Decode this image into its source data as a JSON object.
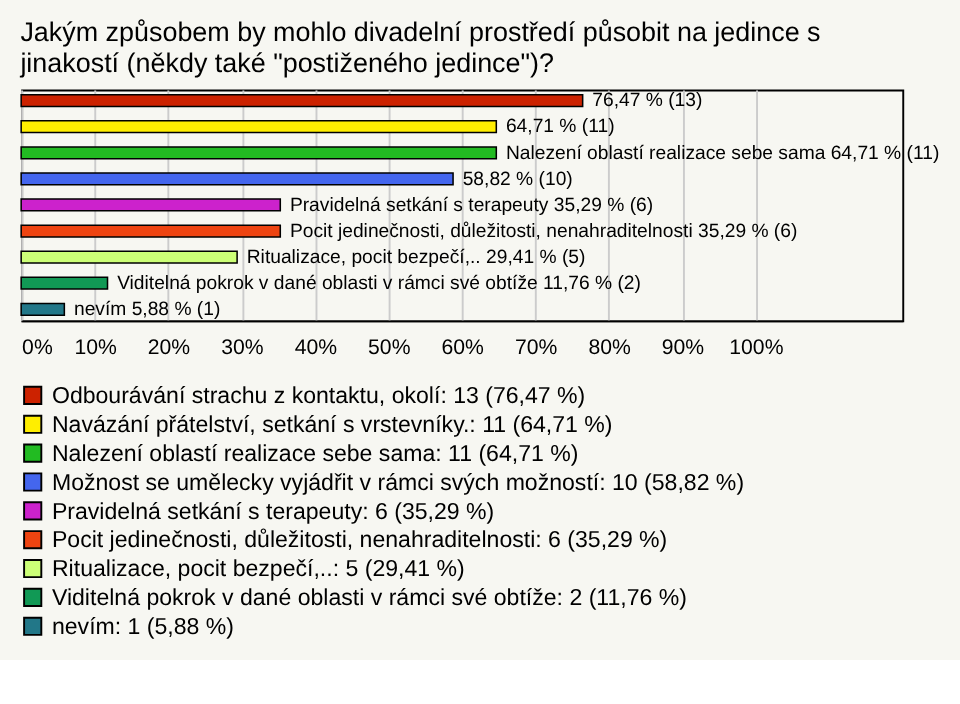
{
  "chart_data": {
    "type": "bar",
    "orientation": "horizontal",
    "title": [
      "Jakým způsobem by mohlo divadelní prostředí působit na jedince s",
      "jinakostí (někdy také \"postiženého jedince\")?"
    ],
    "categories": [
      null,
      null,
      null,
      null,
      null,
      null,
      null,
      null,
      null
    ],
    "series": [
      {
        "name": "Odbourávání strachu z kontaktu, okolí: 13 (76,47 %)",
        "color": "#cc2200",
        "values": [
          76.47,
          null,
          null,
          null,
          null,
          null,
          null,
          null,
          null
        ],
        "value_labels": [
          "76,47 % (13)",
          null,
          null,
          null,
          null,
          null,
          null,
          null,
          null
        ]
      },
      {
        "name": "Navázání přátelství, setkání s vrstevníky.: 11 (64,71 %)",
        "color": "#ffee00",
        "values": [
          null,
          64.71,
          null,
          null,
          null,
          null,
          null,
          null,
          null
        ],
        "value_labels": [
          null,
          "64,71 % (11)",
          null,
          null,
          null,
          null,
          null,
          null,
          null
        ]
      },
      {
        "name": "Nalezení oblastí realizace sebe sama: 11 (64,71 %)",
        "color": "#22bb22",
        "values": [
          null,
          null,
          64.71,
          null,
          null,
          null,
          null,
          null,
          null
        ],
        "value_labels": [
          null,
          null,
          "Nalezení oblastí realizace sebe sama 64,71 % (11)",
          null,
          null,
          null,
          null,
          null,
          null
        ]
      },
      {
        "name": "Možnost se umělecky vyjádřit v rámci svých možností: 10 (58,82 %)",
        "color": "#4466ee",
        "values": [
          null,
          null,
          null,
          58.82,
          null,
          null,
          null,
          null,
          null
        ],
        "value_labels": [
          null,
          null,
          null,
          "58,82 % (10)",
          null,
          null,
          null,
          null,
          null
        ]
      },
      {
        "name": "Pravidelná setkání s terapeuty: 6 (35,29 %)",
        "color": "#cc22cc",
        "values": [
          null,
          null,
          null,
          null,
          35.29,
          null,
          null,
          null,
          null
        ],
        "value_labels": [
          null,
          null,
          null,
          null,
          "Pravidelná setkání s terapeuty 35,29 % (6)",
          null,
          null,
          null,
          null
        ]
      },
      {
        "name": "Pocit jedinečnosti, důležitosti, nenahraditelnosti: 6 (35,29 %)",
        "color": "#ee4411",
        "values": [
          null,
          null,
          null,
          null,
          null,
          35.29,
          null,
          null,
          null
        ],
        "value_labels": [
          null,
          null,
          null,
          null,
          null,
          "Pocit jedinečnosti, důležitosti, nenahraditelnosti 35,29 % (6)",
          null,
          null,
          null
        ]
      },
      {
        "name": "Ritualizace, pocit bezpečí,..: 5 (29,41 %)",
        "color": "#ccff77",
        "values": [
          null,
          null,
          null,
          null,
          null,
          null,
          29.41,
          null,
          null
        ],
        "value_labels": [
          null,
          null,
          null,
          null,
          null,
          null,
          "Ritualizace, pocit bezpečí,.. 29,41 % (5)",
          null,
          null
        ]
      },
      {
        "name": "Viditelná pokrok v dané oblasti v rámci své obtíže: 2 (11,76 %)",
        "color": "#119955",
        "values": [
          null,
          null,
          null,
          null,
          null,
          null,
          null,
          11.76,
          null
        ],
        "value_labels": [
          null,
          null,
          null,
          null,
          null,
          null,
          null,
          "Viditelná pokrok v dané oblasti v rámci své obtíže 11,76 % (2)",
          null
        ]
      },
      {
        "name": "nevím: 1 (5,88 %)",
        "color": "#227788",
        "values": [
          null,
          null,
          null,
          null,
          null,
          null,
          null,
          null,
          5.88
        ],
        "value_labels": [
          null,
          null,
          null,
          null,
          null,
          null,
          null,
          null,
          "nevím 5,88 % (1)"
        ]
      }
    ],
    "xlim": [
      0,
      120
    ],
    "xticks": [
      {
        "value": 0,
        "label": "0%"
      },
      {
        "value": 10,
        "label": "10%"
      },
      {
        "value": 20,
        "label": "20%"
      },
      {
        "value": 30,
        "label": "30%"
      },
      {
        "value": 40,
        "label": "40%"
      },
      {
        "value": 50,
        "label": "50%"
      },
      {
        "value": 60,
        "label": "60%"
      },
      {
        "value": 70,
        "label": "70%"
      },
      {
        "value": 80,
        "label": "80%"
      },
      {
        "value": 90,
        "label": "90%"
      },
      {
        "value": 100,
        "label": "100%"
      }
    ],
    "grid": "x",
    "legend": "bottom"
  }
}
